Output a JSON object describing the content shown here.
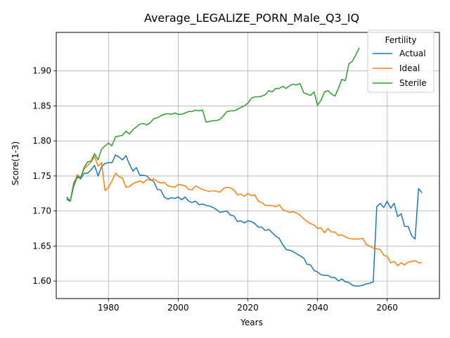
{
  "chart_data": {
    "type": "line",
    "title": "Average_LEGALIZE_PORN_Male_Q3_IQ",
    "xlabel": "Years",
    "ylabel": "Score(1-3)",
    "xlim": [
      1965,
      2075
    ],
    "ylim": [
      1.575,
      1.955
    ],
    "x_ticks": [
      1980,
      2000,
      2020,
      2040,
      2060
    ],
    "y_ticks": [
      1.6,
      1.65,
      1.7,
      1.75,
      1.8,
      1.85,
      1.9
    ],
    "x_tick_labels": [
      "1980",
      "2000",
      "2020",
      "2040",
      "2060"
    ],
    "y_tick_labels": [
      "1.60",
      "1.65",
      "1.70",
      "1.75",
      "1.80",
      "1.85",
      "1.90"
    ],
    "grid": true,
    "legend": {
      "title": "Fertility",
      "position": "top-right"
    },
    "series": [
      {
        "name": "Actual",
        "color": "#1f77b4",
        "points": [
          [
            1968,
            1.72
          ],
          [
            1969,
            1.714
          ],
          [
            1970,
            1.74
          ],
          [
            1971,
            1.75
          ],
          [
            1972,
            1.746
          ],
          [
            1973,
            1.754
          ],
          [
            1974,
            1.754
          ],
          [
            1975,
            1.759
          ],
          [
            1976,
            1.765
          ],
          [
            1977,
            1.75
          ],
          [
            1978,
            1.763
          ],
          [
            1979,
            1.768
          ],
          [
            1980,
            1.769
          ],
          [
            1981,
            1.769
          ],
          [
            1982,
            1.78
          ],
          [
            1983,
            1.777
          ],
          [
            1984,
            1.773
          ],
          [
            1985,
            1.779
          ],
          [
            1986,
            1.767
          ],
          [
            1987,
            1.757
          ],
          [
            1988,
            1.762
          ],
          [
            1989,
            1.751
          ],
          [
            1990,
            1.751
          ],
          [
            1991,
            1.75
          ],
          [
            1992,
            1.745
          ],
          [
            1993,
            1.742
          ],
          [
            1994,
            1.731
          ],
          [
            1995,
            1.73
          ],
          [
            1996,
            1.72
          ],
          [
            1997,
            1.717
          ],
          [
            1998,
            1.719
          ],
          [
            1999,
            1.718
          ],
          [
            2000,
            1.72
          ],
          [
            2001,
            1.716
          ],
          [
            2002,
            1.72
          ],
          [
            2003,
            1.714
          ],
          [
            2004,
            1.712
          ],
          [
            2005,
            1.714
          ],
          [
            2006,
            1.709
          ],
          [
            2007,
            1.71
          ],
          [
            2008,
            1.708
          ],
          [
            2009,
            1.707
          ],
          [
            2010,
            1.705
          ],
          [
            2011,
            1.702
          ],
          [
            2012,
            1.698
          ],
          [
            2013,
            1.699
          ],
          [
            2014,
            1.7
          ],
          [
            2015,
            1.694
          ],
          [
            2016,
            1.693
          ],
          [
            2017,
            1.685
          ],
          [
            2018,
            1.686
          ],
          [
            2019,
            1.683
          ],
          [
            2020,
            1.686
          ],
          [
            2021,
            1.685
          ],
          [
            2022,
            1.682
          ],
          [
            2023,
            1.677
          ],
          [
            2024,
            1.677
          ],
          [
            2025,
            1.672
          ],
          [
            2026,
            1.674
          ],
          [
            2027,
            1.669
          ],
          [
            2028,
            1.664
          ],
          [
            2029,
            1.661
          ],
          [
            2030,
            1.652
          ],
          [
            2031,
            1.645
          ],
          [
            2032,
            1.644
          ],
          [
            2033,
            1.642
          ],
          [
            2034,
            1.639
          ],
          [
            2035,
            1.636
          ],
          [
            2036,
            1.633
          ],
          [
            2037,
            1.624
          ],
          [
            2038,
            1.623
          ],
          [
            2039,
            1.615
          ],
          [
            2040,
            1.613
          ],
          [
            2041,
            1.609
          ],
          [
            2042,
            1.608
          ],
          [
            2043,
            1.608
          ],
          [
            2044,
            1.605
          ],
          [
            2045,
            1.605
          ],
          [
            2046,
            1.6
          ],
          [
            2047,
            1.603
          ],
          [
            2048,
            1.599
          ],
          [
            2049,
            1.598
          ],
          [
            2050,
            1.594
          ],
          [
            2051,
            1.593
          ],
          [
            2052,
            1.593
          ],
          [
            2053,
            1.594
          ],
          [
            2054,
            1.596
          ],
          [
            2055,
            1.597
          ],
          [
            2056,
            1.599
          ],
          [
            2057,
            1.706
          ],
          [
            2058,
            1.711
          ],
          [
            2059,
            1.705
          ],
          [
            2060,
            1.714
          ],
          [
            2061,
            1.704
          ],
          [
            2062,
            1.711
          ],
          [
            2063,
            1.692
          ],
          [
            2064,
            1.696
          ],
          [
            2065,
            1.678
          ],
          [
            2066,
            1.678
          ],
          [
            2067,
            1.665
          ],
          [
            2068,
            1.66
          ],
          [
            2069,
            1.732
          ],
          [
            2070,
            1.726
          ]
        ]
      },
      {
        "name": "Ideal",
        "color": "#ff7f0e",
        "points": [
          [
            1968,
            1.716
          ],
          [
            1969,
            1.714
          ],
          [
            1970,
            1.737
          ],
          [
            1971,
            1.752
          ],
          [
            1972,
            1.748
          ],
          [
            1973,
            1.76
          ],
          [
            1974,
            1.765
          ],
          [
            1975,
            1.77
          ],
          [
            1976,
            1.778
          ],
          [
            1977,
            1.764
          ],
          [
            1978,
            1.769
          ],
          [
            1979,
            1.729
          ],
          [
            1980,
            1.734
          ],
          [
            1981,
            1.743
          ],
          [
            1982,
            1.754
          ],
          [
            1983,
            1.749
          ],
          [
            1984,
            1.747
          ],
          [
            1985,
            1.734
          ],
          [
            1986,
            1.735
          ],
          [
            1987,
            1.739
          ],
          [
            1988,
            1.741
          ],
          [
            1989,
            1.743
          ],
          [
            1990,
            1.74
          ],
          [
            1991,
            1.745
          ],
          [
            1992,
            1.744
          ],
          [
            1993,
            1.746
          ],
          [
            1994,
            1.742
          ],
          [
            1995,
            1.74
          ],
          [
            1996,
            1.741
          ],
          [
            1997,
            1.736
          ],
          [
            1998,
            1.735
          ],
          [
            1999,
            1.734
          ],
          [
            2000,
            1.738
          ],
          [
            2001,
            1.737
          ],
          [
            2002,
            1.736
          ],
          [
            2003,
            1.731
          ],
          [
            2004,
            1.73
          ],
          [
            2005,
            1.736
          ],
          [
            2006,
            1.733
          ],
          [
            2007,
            1.731
          ],
          [
            2008,
            1.729
          ],
          [
            2009,
            1.728
          ],
          [
            2010,
            1.729
          ],
          [
            2011,
            1.728
          ],
          [
            2012,
            1.727
          ],
          [
            2013,
            1.732
          ],
          [
            2014,
            1.734
          ],
          [
            2015,
            1.733
          ],
          [
            2016,
            1.73
          ],
          [
            2017,
            1.723
          ],
          [
            2018,
            1.724
          ],
          [
            2019,
            1.721
          ],
          [
            2020,
            1.725
          ],
          [
            2021,
            1.722
          ],
          [
            2022,
            1.723
          ],
          [
            2023,
            1.714
          ],
          [
            2024,
            1.712
          ],
          [
            2025,
            1.708
          ],
          [
            2026,
            1.708
          ],
          [
            2027,
            1.708
          ],
          [
            2028,
            1.706
          ],
          [
            2029,
            1.709
          ],
          [
            2030,
            1.702
          ],
          [
            2031,
            1.7
          ],
          [
            2032,
            1.698
          ],
          [
            2033,
            1.699
          ],
          [
            2034,
            1.697
          ],
          [
            2035,
            1.694
          ],
          [
            2036,
            1.689
          ],
          [
            2037,
            1.685
          ],
          [
            2038,
            1.682
          ],
          [
            2039,
            1.68
          ],
          [
            2040,
            1.675
          ],
          [
            2041,
            1.676
          ],
          [
            2042,
            1.669
          ],
          [
            2043,
            1.675
          ],
          [
            2044,
            1.67
          ],
          [
            2045,
            1.67
          ],
          [
            2046,
            1.665
          ],
          [
            2047,
            1.666
          ],
          [
            2048,
            1.663
          ],
          [
            2049,
            1.661
          ],
          [
            2050,
            1.66
          ],
          [
            2051,
            1.66
          ],
          [
            2052,
            1.66
          ],
          [
            2053,
            1.661
          ],
          [
            2054,
            1.652
          ],
          [
            2055,
            1.65
          ],
          [
            2056,
            1.647
          ],
          [
            2057,
            1.646
          ],
          [
            2058,
            1.645
          ],
          [
            2059,
            1.637
          ],
          [
            2060,
            1.635
          ],
          [
            2061,
            1.626
          ],
          [
            2062,
            1.628
          ],
          [
            2063,
            1.622
          ],
          [
            2064,
            1.626
          ],
          [
            2065,
            1.623
          ],
          [
            2066,
            1.627
          ],
          [
            2067,
            1.628
          ],
          [
            2068,
            1.629
          ],
          [
            2069,
            1.626
          ],
          [
            2070,
            1.626
          ]
        ]
      },
      {
        "name": "Sterile",
        "color": "#2ca02c",
        "points": [
          [
            1968,
            1.717
          ],
          [
            1969,
            1.714
          ],
          [
            1970,
            1.735
          ],
          [
            1971,
            1.748
          ],
          [
            1972,
            1.747
          ],
          [
            1973,
            1.762
          ],
          [
            1974,
            1.77
          ],
          [
            1975,
            1.771
          ],
          [
            1976,
            1.782
          ],
          [
            1977,
            1.773
          ],
          [
            1978,
            1.788
          ],
          [
            1979,
            1.793
          ],
          [
            1980,
            1.797
          ],
          [
            1981,
            1.793
          ],
          [
            1982,
            1.806
          ],
          [
            1983,
            1.807
          ],
          [
            1984,
            1.808
          ],
          [
            1985,
            1.814
          ],
          [
            1986,
            1.81
          ],
          [
            1987,
            1.816
          ],
          [
            1988,
            1.82
          ],
          [
            1989,
            1.824
          ],
          [
            1990,
            1.825
          ],
          [
            1991,
            1.823
          ],
          [
            1992,
            1.826
          ],
          [
            1993,
            1.832
          ],
          [
            1994,
            1.833
          ],
          [
            1995,
            1.836
          ],
          [
            1996,
            1.838
          ],
          [
            1997,
            1.839
          ],
          [
            1998,
            1.838
          ],
          [
            1999,
            1.84
          ],
          [
            2000,
            1.838
          ],
          [
            2001,
            1.838
          ],
          [
            2002,
            1.84
          ],
          [
            2003,
            1.842
          ],
          [
            2004,
            1.842
          ],
          [
            2005,
            1.844
          ],
          [
            2006,
            1.843
          ],
          [
            2007,
            1.844
          ],
          [
            2008,
            1.827
          ],
          [
            2009,
            1.828
          ],
          [
            2010,
            1.829
          ],
          [
            2011,
            1.829
          ],
          [
            2012,
            1.831
          ],
          [
            2013,
            1.836
          ],
          [
            2014,
            1.842
          ],
          [
            2015,
            1.843
          ],
          [
            2016,
            1.843
          ],
          [
            2017,
            1.845
          ],
          [
            2018,
            1.848
          ],
          [
            2019,
            1.85
          ],
          [
            2020,
            1.854
          ],
          [
            2021,
            1.861
          ],
          [
            2022,
            1.863
          ],
          [
            2023,
            1.863
          ],
          [
            2024,
            1.864
          ],
          [
            2025,
            1.866
          ],
          [
            2026,
            1.872
          ],
          [
            2027,
            1.87
          ],
          [
            2028,
            1.875
          ],
          [
            2029,
            1.875
          ],
          [
            2030,
            1.878
          ],
          [
            2031,
            1.875
          ],
          [
            2032,
            1.879
          ],
          [
            2033,
            1.881
          ],
          [
            2034,
            1.88
          ],
          [
            2035,
            1.882
          ],
          [
            2036,
            1.869
          ],
          [
            2037,
            1.867
          ],
          [
            2038,
            1.865
          ],
          [
            2039,
            1.87
          ],
          [
            2040,
            1.851
          ],
          [
            2041,
            1.858
          ],
          [
            2042,
            1.87
          ],
          [
            2043,
            1.872
          ],
          [
            2044,
            1.867
          ],
          [
            2045,
            1.864
          ],
          [
            2046,
            1.875
          ],
          [
            2047,
            1.888
          ],
          [
            2048,
            1.886
          ],
          [
            2049,
            1.91
          ],
          [
            2050,
            1.914
          ],
          [
            2051,
            1.923
          ],
          [
            2052,
            1.933
          ]
        ]
      }
    ]
  }
}
